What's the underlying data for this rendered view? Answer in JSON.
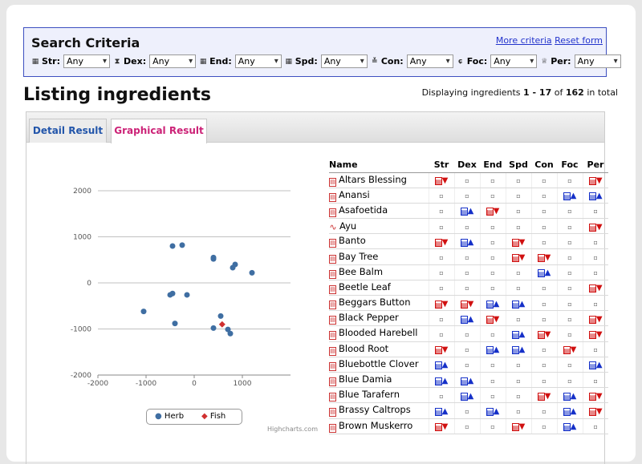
{
  "search": {
    "title": "Search Criteria",
    "more_link": "More criteria",
    "reset_link": "Reset form",
    "filters": [
      {
        "label": "Str:",
        "value": "Any",
        "icon": "strength-icon"
      },
      {
        "label": "Dex:",
        "value": "Any",
        "icon": "dexterity-icon"
      },
      {
        "label": "End:",
        "value": "Any",
        "icon": "endurance-icon"
      },
      {
        "label": "Spd:",
        "value": "Any",
        "icon": "speed-icon"
      },
      {
        "label": "Con:",
        "value": "Any",
        "icon": "constitution-icon"
      },
      {
        "label": "Foc:",
        "value": "Any",
        "icon": "focus-icon"
      },
      {
        "label": "Per:",
        "value": "Any",
        "icon": "perception-icon"
      }
    ]
  },
  "heading": "Listing ingredients",
  "display": {
    "prefix": "Displaying ingredients",
    "from": "1",
    "dash": " - ",
    "to": "17",
    "of": "of",
    "total": "162",
    "suffix": "in total"
  },
  "tabs": [
    {
      "label": "Detail Result"
    },
    {
      "label": "Graphical Result"
    }
  ],
  "table": {
    "headers": [
      "Name",
      "Str",
      "Dex",
      "End",
      "Spd",
      "Con",
      "Foc",
      "Per"
    ],
    "rows": [
      {
        "name": "Altars Blessing",
        "cat": "herb",
        "cells": [
          "rd",
          ".",
          ".",
          ".",
          ".",
          ".",
          "rd"
        ]
      },
      {
        "name": "Anansi",
        "cat": "herb",
        "cells": [
          ".",
          ".",
          ".",
          ".",
          ".",
          "bu",
          "bu"
        ]
      },
      {
        "name": "Asafoetida",
        "cat": "herb",
        "cells": [
          ".",
          "bu",
          "rd",
          ".",
          ".",
          ".",
          "."
        ]
      },
      {
        "name": "Ayu",
        "cat": "root",
        "cells": [
          ".",
          ".",
          ".",
          ".",
          ".",
          ".",
          "rd"
        ]
      },
      {
        "name": "Banto",
        "cat": "herb",
        "cells": [
          "rd",
          "bu",
          ".",
          "rd",
          ".",
          ".",
          "."
        ]
      },
      {
        "name": "Bay Tree",
        "cat": "herb",
        "cells": [
          ".",
          ".",
          ".",
          "rd",
          "rd",
          ".",
          "."
        ]
      },
      {
        "name": "Bee Balm",
        "cat": "herb",
        "cells": [
          ".",
          ".",
          ".",
          ".",
          "bu",
          ".",
          "."
        ]
      },
      {
        "name": "Beetle Leaf",
        "cat": "herb",
        "cells": [
          ".",
          ".",
          ".",
          ".",
          ".",
          ".",
          "rd"
        ]
      },
      {
        "name": "Beggars Button",
        "cat": "herb",
        "cells": [
          "rd",
          "rd",
          "bu",
          "bu",
          ".",
          ".",
          "."
        ]
      },
      {
        "name": "Black Pepper",
        "cat": "herb",
        "cells": [
          ".",
          "bu",
          "rd",
          ".",
          ".",
          ".",
          "rd"
        ]
      },
      {
        "name": "Blooded Harebell",
        "cat": "herb",
        "cells": [
          ".",
          ".",
          ".",
          "bu",
          "rd",
          ".",
          "rd"
        ]
      },
      {
        "name": "Blood Root",
        "cat": "herb",
        "cells": [
          "rd",
          ".",
          "bu",
          "bu",
          ".",
          "rd",
          "."
        ]
      },
      {
        "name": "Bluebottle Clover",
        "cat": "herb",
        "cells": [
          "bu",
          ".",
          ".",
          ".",
          ".",
          ".",
          "bu"
        ]
      },
      {
        "name": "Blue Damia",
        "cat": "herb",
        "cells": [
          "bu",
          "bu",
          ".",
          ".",
          ".",
          ".",
          "."
        ]
      },
      {
        "name": "Blue Tarafern",
        "cat": "herb",
        "cells": [
          ".",
          "bu",
          ".",
          ".",
          "rd",
          "bu",
          "rd"
        ]
      },
      {
        "name": "Brassy Caltrops",
        "cat": "herb",
        "cells": [
          "bu",
          ".",
          "bu",
          ".",
          ".",
          "bu",
          "rd"
        ]
      },
      {
        "name": "Brown Muskerro",
        "cat": "herb",
        "cells": [
          "rd",
          ".",
          ".",
          "rd",
          ".",
          "bu",
          "."
        ]
      }
    ]
  },
  "chart_data": {
    "type": "scatter",
    "title": "",
    "xlabel": "",
    "ylabel": "",
    "xlim": [
      -2000,
      2000
    ],
    "ylim": [
      -2000,
      2000
    ],
    "x_ticks": [
      "-2000",
      "-1000",
      "0",
      "1000"
    ],
    "y_ticks": [
      "2000",
      "1000",
      "0",
      "-1000",
      "-2000"
    ],
    "legend_position": "bottom",
    "series": [
      {
        "name": "Herb",
        "color": "#3f6ea2",
        "marker": "circle",
        "points": [
          [
            -450,
            800
          ],
          [
            -250,
            820
          ],
          [
            400,
            550
          ],
          [
            400,
            520
          ],
          [
            850,
            400
          ],
          [
            800,
            330
          ],
          [
            1200,
            220
          ],
          [
            -450,
            -230
          ],
          [
            -500,
            -260
          ],
          [
            -150,
            -260
          ],
          [
            -1050,
            -620
          ],
          [
            -400,
            -880
          ],
          [
            550,
            -720
          ],
          [
            400,
            -980
          ],
          [
            700,
            -1010
          ],
          [
            750,
            -1100
          ]
        ]
      },
      {
        "name": "Fish",
        "color": "#d03030",
        "marker": "diamond",
        "points": [
          [
            580,
            -900
          ]
        ]
      }
    ]
  },
  "credits": "Highcharts.com"
}
